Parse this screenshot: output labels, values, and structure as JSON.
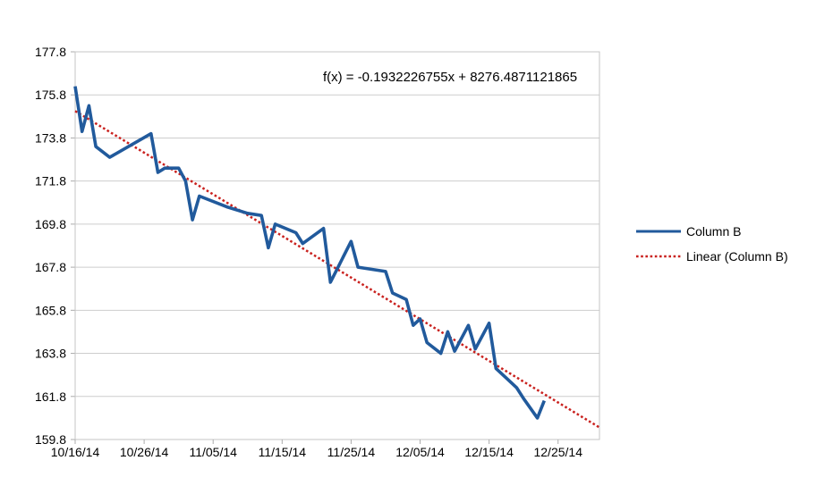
{
  "chart": {
    "background": "#ffffff",
    "equation_label": "f(x) = -0.1932226755x + 8276.4871121865",
    "colors": {
      "series_line": "#215A9C",
      "trend_line": "#C9211E",
      "gridline": "#CDCDCD",
      "plot_border": "#C6C6C6",
      "tick": "#ABABAB",
      "text": "#000000"
    }
  },
  "chart_data": {
    "type": "line",
    "title": "",
    "annotation": "f(x) = -0.1932226755x + 8276.4871121865",
    "grid": "horizontal",
    "legend_position": "right",
    "x_axis": {
      "type": "date",
      "start_date": "10/16/14",
      "range_days": [
        0,
        76
      ],
      "tick_step_days": 10,
      "tick_labels": [
        "10/16/14",
        "10/26/14",
        "11/05/14",
        "11/15/14",
        "11/25/14",
        "12/05/14",
        "12/15/14",
        "12/25/14"
      ]
    },
    "y_axis": {
      "min": 159.8,
      "max": 177.8,
      "tick_step": 2,
      "tick_labels": [
        "177.8",
        "175.8",
        "173.8",
        "171.8",
        "169.8",
        "167.8",
        "165.8",
        "163.8",
        "161.8",
        "159.8"
      ]
    },
    "series": [
      {
        "name": "Column B",
        "style": "solid",
        "color": "#215A9C",
        "points": [
          {
            "date": "10/16/14",
            "day": 0,
            "value": 176.2
          },
          {
            "date": "10/17/14",
            "day": 1,
            "value": 174.1
          },
          {
            "date": "10/18/14",
            "day": 2,
            "value": 175.3
          },
          {
            "date": "10/19/14",
            "day": 3,
            "value": 173.4
          },
          {
            "date": "10/21/14",
            "day": 5,
            "value": 172.9
          },
          {
            "date": "10/27/14",
            "day": 11,
            "value": 174.0
          },
          {
            "date": "10/28/14",
            "day": 12,
            "value": 172.2
          },
          {
            "date": "10/29/14",
            "day": 13,
            "value": 172.4
          },
          {
            "date": "10/31/14",
            "day": 15,
            "value": 172.4
          },
          {
            "date": "11/01/14",
            "day": 16,
            "value": 171.8
          },
          {
            "date": "11/02/14",
            "day": 17,
            "value": 170.0
          },
          {
            "date": "11/03/14",
            "day": 18,
            "value": 171.1
          },
          {
            "date": "11/07/14",
            "day": 22,
            "value": 170.6
          },
          {
            "date": "11/10/14",
            "day": 25,
            "value": 170.3
          },
          {
            "date": "11/12/14",
            "day": 27,
            "value": 170.2
          },
          {
            "date": "11/13/14",
            "day": 28,
            "value": 168.7
          },
          {
            "date": "11/14/14",
            "day": 29,
            "value": 169.8
          },
          {
            "date": "11/17/14",
            "day": 32,
            "value": 169.4
          },
          {
            "date": "11/18/14",
            "day": 33,
            "value": 168.9
          },
          {
            "date": "11/21/14",
            "day": 36,
            "value": 169.6
          },
          {
            "date": "11/22/14",
            "day": 37,
            "value": 167.1
          },
          {
            "date": "11/25/14",
            "day": 40,
            "value": 169.0
          },
          {
            "date": "11/26/14",
            "day": 41,
            "value": 167.8
          },
          {
            "date": "11/28/14",
            "day": 43,
            "value": 167.7
          },
          {
            "date": "11/30/14",
            "day": 45,
            "value": 167.6
          },
          {
            "date": "12/01/14",
            "day": 46,
            "value": 166.6
          },
          {
            "date": "12/03/14",
            "day": 48,
            "value": 166.3
          },
          {
            "date": "12/04/14",
            "day": 49,
            "value": 165.1
          },
          {
            "date": "12/05/14",
            "day": 50,
            "value": 165.4
          },
          {
            "date": "12/06/14",
            "day": 51,
            "value": 164.3
          },
          {
            "date": "12/08/14",
            "day": 53,
            "value": 163.8
          },
          {
            "date": "12/09/14",
            "day": 54,
            "value": 164.8
          },
          {
            "date": "12/10/14",
            "day": 55,
            "value": 163.9
          },
          {
            "date": "12/12/14",
            "day": 57,
            "value": 165.1
          },
          {
            "date": "12/13/14",
            "day": 58,
            "value": 164.0
          },
          {
            "date": "12/15/14",
            "day": 60,
            "value": 165.2
          },
          {
            "date": "12/16/14",
            "day": 61,
            "value": 163.1
          },
          {
            "date": "12/17/14",
            "day": 62,
            "value": 162.8
          },
          {
            "date": "12/19/14",
            "day": 64,
            "value": 162.2
          },
          {
            "date": "12/20/14",
            "day": 65,
            "value": 161.7
          },
          {
            "date": "12/22/14",
            "day": 67,
            "value": 160.8
          },
          {
            "date": "12/23/14",
            "day": 68,
            "value": 161.6
          }
        ]
      },
      {
        "name": "Linear (Column B)",
        "style": "dotted",
        "color": "#C9211E",
        "equation": "f(x) = -0.1932226755x + 8276.4871121865",
        "slope": -0.1932226755,
        "intercept": 8276.4871121865,
        "endpoints": [
          {
            "day": 0,
            "value": 175.05
          },
          {
            "day": 76,
            "value": 160.36
          }
        ]
      }
    ],
    "legend": {
      "entries": [
        {
          "label": "Column B",
          "swatch": "solid-line",
          "color": "#215A9C"
        },
        {
          "label": "Linear (Column B)",
          "swatch": "dotted-line",
          "color": "#C9211E"
        }
      ]
    }
  }
}
